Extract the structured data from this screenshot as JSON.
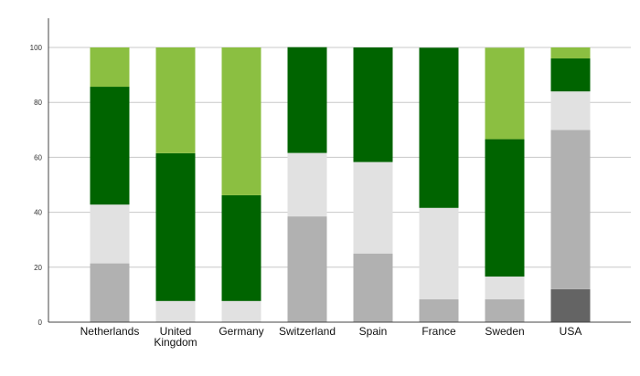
{
  "chart_data": {
    "type": "bar",
    "stacked": true,
    "title": "",
    "xlabel": "",
    "ylabel": "",
    "ylim": [
      0,
      100
    ],
    "yticks": [
      0,
      20,
      40,
      60,
      80,
      100
    ],
    "grid": true,
    "legend": "none",
    "categories": [
      "Netherlands",
      "United Kingdom",
      "Germany",
      "Switzerland",
      "Spain",
      "France",
      "Sweden",
      "USA"
    ],
    "category_label_lines": [
      [
        "Netherlands"
      ],
      [
        "United",
        "Kingdom"
      ],
      [
        "Germany"
      ],
      [
        "Switzerland"
      ],
      [
        "Spain"
      ],
      [
        "France"
      ],
      [
        "Sweden"
      ],
      [
        "USA"
      ]
    ],
    "series": [
      {
        "color": "#646464",
        "values": [
          0,
          0,
          0,
          0,
          0,
          0,
          0,
          12
        ]
      },
      {
        "color": "#b1b1b1",
        "values": [
          21.4,
          0,
          0,
          38.5,
          25,
          8.3,
          8.3,
          58
        ]
      },
      {
        "color": "#e1e1e1",
        "values": [
          21.4,
          7.7,
          7.7,
          23.1,
          33.3,
          33.3,
          8.3,
          14
        ]
      },
      {
        "color": "#006400",
        "values": [
          42.9,
          53.8,
          38.5,
          38.5,
          41.7,
          58.3,
          50,
          12
        ]
      },
      {
        "color": "#8bbf41",
        "values": [
          14.3,
          38.5,
          53.8,
          0,
          0,
          0,
          33.3,
          4
        ]
      }
    ]
  }
}
